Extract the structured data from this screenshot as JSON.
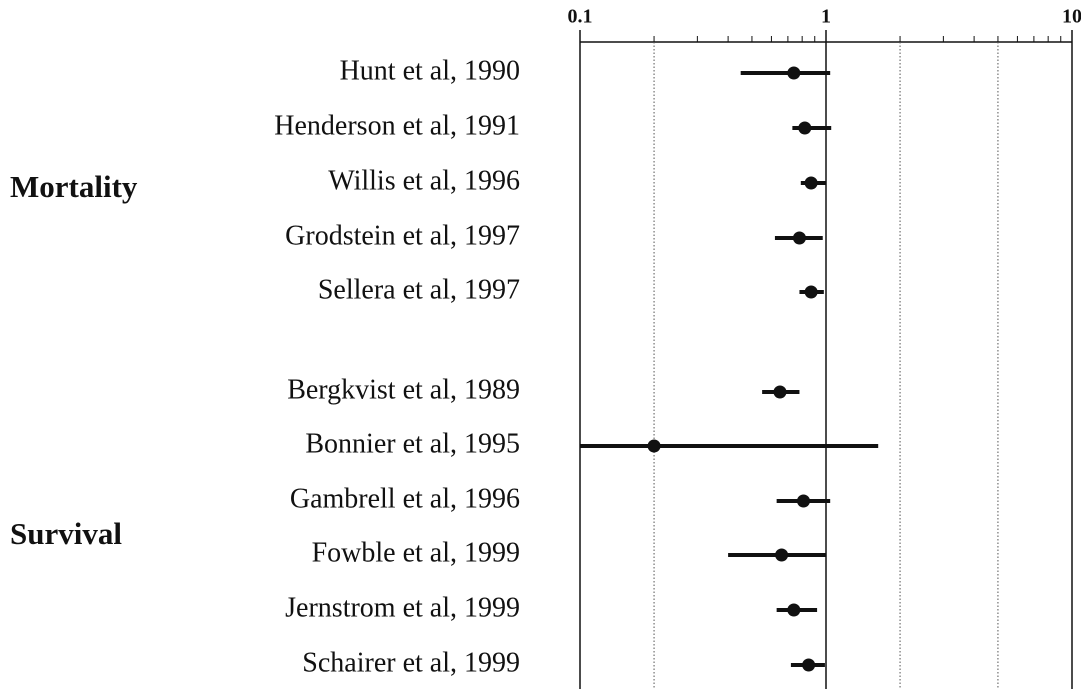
{
  "chart_data": {
    "type": "forest",
    "log_x": true,
    "xlim": [
      0.1,
      10
    ],
    "xticks": [
      0.1,
      1,
      10
    ],
    "minor_xticks": [
      0.2,
      0.3,
      0.4,
      0.5,
      0.6,
      0.7,
      0.8,
      0.9,
      2,
      3,
      4,
      5,
      6,
      7,
      8,
      9
    ],
    "grid_lines": [
      0.2,
      2,
      5
    ],
    "reference_line": 1,
    "color": "#111111",
    "groups": [
      {
        "name": "Mortality",
        "studies": [
          {
            "label": "Hunt et al, 1990",
            "estimate": 0.74,
            "ci": [
              0.45,
              1.04
            ]
          },
          {
            "label": "Henderson et al, 1991",
            "estimate": 0.82,
            "ci": [
              0.73,
              1.05
            ]
          },
          {
            "label": "Willis et al, 1996",
            "estimate": 0.87,
            "ci": [
              0.79,
              1.0
            ]
          },
          {
            "label": "Grodstein et al, 1997",
            "estimate": 0.78,
            "ci": [
              0.62,
              0.97
            ]
          },
          {
            "label": "Sellera et al, 1997",
            "estimate": 0.87,
            "ci": [
              0.78,
              0.98
            ]
          }
        ]
      },
      {
        "name": "Survival",
        "studies": [
          {
            "label": "Bergkvist et al, 1989",
            "estimate": 0.65,
            "ci": [
              0.55,
              0.78
            ]
          },
          {
            "label": "Bonnier et al, 1995",
            "estimate": 0.2,
            "ci": [
              0.1,
              1.63
            ]
          },
          {
            "label": "Gambrell et al, 1996",
            "estimate": 0.81,
            "ci": [
              0.63,
              1.04
            ]
          },
          {
            "label": "Fowble et al, 1999",
            "estimate": 0.66,
            "ci": [
              0.4,
              1.0
            ]
          },
          {
            "label": "Jernstrom et al, 1999",
            "estimate": 0.74,
            "ci": [
              0.63,
              0.92
            ]
          },
          {
            "label": "Schairer et al, 1999",
            "estimate": 0.85,
            "ci": [
              0.72,
              0.99
            ]
          }
        ]
      }
    ]
  }
}
